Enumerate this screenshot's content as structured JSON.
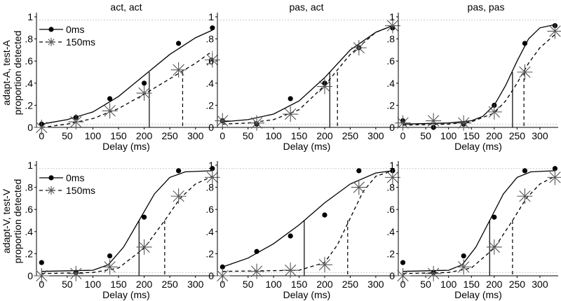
{
  "figure": {
    "row_labels": [
      [
        "adapt-A, test-A",
        "proportion detected"
      ],
      [
        "adapt-V, test-V",
        "proportion detected"
      ]
    ],
    "column_titles": [
      "act, act",
      "pas, act",
      "pas, pas"
    ]
  },
  "chart_data": [
    {
      "type": "line",
      "row": 0,
      "col": 0,
      "title": "act, act",
      "xlabel": "Delay (ms)",
      "ylabel": "",
      "xlim": [
        -10,
        340
      ],
      "ylim": [
        0,
        1
      ],
      "xticks": [
        "0",
        "50",
        "100",
        "150",
        "200",
        "250",
        "300"
      ],
      "yticks": [
        "0",
        ".2",
        ".4",
        ".6",
        ".8",
        "1"
      ],
      "legend": {
        "position": "top-left",
        "entries": [
          "0ms",
          "150ms"
        ]
      },
      "series": [
        {
          "name": "0ms",
          "style": "solid",
          "marker": "dot",
          "x": [
            0,
            67,
            133,
            200,
            267,
            333
          ],
          "y": [
            0.03,
            0.09,
            0.26,
            0.4,
            0.76,
            0.9
          ],
          "fit_threshold_x": 210,
          "fit_threshold_y": 0.5,
          "fit_x": [
            0,
            50,
            100,
            150,
            200,
            250,
            300,
            333
          ],
          "fit_y": [
            0.03,
            0.07,
            0.14,
            0.28,
            0.47,
            0.66,
            0.81,
            0.88
          ]
        },
        {
          "name": "150ms",
          "style": "dashed",
          "marker": "asterisk",
          "x": [
            0,
            67,
            133,
            200,
            267,
            333
          ],
          "y": [
            0.0,
            0.05,
            0.15,
            0.31,
            0.52,
            0.61
          ],
          "fit_threshold_x": 275,
          "fit_threshold_y": 0.5,
          "fit_x": [
            0,
            50,
            100,
            150,
            200,
            250,
            300,
            333
          ],
          "fit_y": [
            0.0,
            0.03,
            0.08,
            0.17,
            0.3,
            0.44,
            0.58,
            0.69
          ]
        }
      ]
    },
    {
      "type": "line",
      "row": 0,
      "col": 1,
      "title": "pas, act",
      "xlabel": "Delay (ms)",
      "ylabel": "",
      "xlim": [
        -10,
        340
      ],
      "ylim": [
        0,
        1
      ],
      "xticks": [
        "0",
        "50",
        "100",
        "150",
        "200",
        "250",
        "300"
      ],
      "yticks": [
        "0",
        ".2",
        ".4",
        ".6",
        ".8",
        "1"
      ],
      "series": [
        {
          "name": "0ms",
          "style": "solid",
          "marker": "dot",
          "x": [
            0,
            67,
            133,
            200,
            267,
            333
          ],
          "y": [
            0.06,
            0.03,
            0.26,
            0.4,
            0.72,
            0.9
          ],
          "fit_threshold_x": 210,
          "fit_threshold_y": 0.5,
          "fit_x": [
            0,
            50,
            100,
            150,
            200,
            250,
            300,
            333
          ],
          "fit_y": [
            0.05,
            0.07,
            0.12,
            0.24,
            0.45,
            0.7,
            0.86,
            0.92
          ]
        },
        {
          "name": "150ms",
          "style": "dashed",
          "marker": "asterisk",
          "x": [
            0,
            67,
            133,
            200,
            267,
            333
          ],
          "y": [
            0.06,
            0.04,
            0.12,
            0.37,
            0.72,
            0.92
          ],
          "fit_threshold_x": 225,
          "fit_threshold_y": 0.5,
          "fit_x": [
            0,
            50,
            100,
            150,
            200,
            250,
            300,
            333
          ],
          "fit_y": [
            0.03,
            0.04,
            0.07,
            0.16,
            0.38,
            0.66,
            0.86,
            0.92
          ]
        }
      ]
    },
    {
      "type": "line",
      "row": 0,
      "col": 2,
      "title": "pas, pas",
      "xlabel": "Delay (ms)",
      "ylabel": "",
      "xlim": [
        -10,
        340
      ],
      "ylim": [
        0,
        1
      ],
      "xticks": [
        "0",
        "50",
        "100",
        "150",
        "200",
        "250",
        "300"
      ],
      "yticks": [
        "0",
        ".2",
        ".4",
        ".6",
        ".8",
        "1"
      ],
      "series": [
        {
          "name": "0ms",
          "style": "solid",
          "marker": "dot",
          "x": [
            0,
            67,
            133,
            200,
            267,
            333
          ],
          "y": [
            0.06,
            0.0,
            0.03,
            0.2,
            0.76,
            0.92
          ],
          "fit_threshold_x": 240,
          "fit_threshold_y": 0.5,
          "fit_x": [
            0,
            100,
            150,
            175,
            200,
            225,
            250,
            275,
            300,
            333
          ],
          "fit_y": [
            0.03,
            0.04,
            0.06,
            0.1,
            0.2,
            0.38,
            0.6,
            0.8,
            0.9,
            0.93
          ]
        },
        {
          "name": "150ms",
          "style": "dashed",
          "marker": "asterisk",
          "x": [
            0,
            67,
            133,
            200,
            267,
            333
          ],
          "y": [
            0.04,
            0.06,
            0.04,
            0.14,
            0.5,
            0.87
          ],
          "fit_threshold_x": 265,
          "fit_threshold_y": 0.5,
          "fit_x": [
            0,
            100,
            150,
            200,
            225,
            250,
            275,
            300,
            333
          ],
          "fit_y": [
            0.02,
            0.03,
            0.05,
            0.13,
            0.24,
            0.4,
            0.58,
            0.72,
            0.84
          ]
        }
      ]
    },
    {
      "type": "line",
      "row": 1,
      "col": 0,
      "title": "",
      "xlabel": "Delay (ms)",
      "ylabel": "",
      "xlim": [
        -10,
        340
      ],
      "ylim": [
        0,
        1
      ],
      "xticks": [
        "0",
        "50",
        "100",
        "150",
        "200",
        "250",
        "300"
      ],
      "yticks": [
        "0",
        ".2",
        ".4",
        ".6",
        ".8",
        "1"
      ],
      "legend": {
        "position": "top-left",
        "entries": [
          "0ms",
          "150ms"
        ]
      },
      "series": [
        {
          "name": "0ms",
          "style": "solid",
          "marker": "dot",
          "x": [
            0,
            67,
            133,
            200,
            267,
            333
          ],
          "y": [
            0.12,
            0.03,
            0.18,
            0.53,
            0.95,
            0.97
          ],
          "fit_threshold_x": 190,
          "fit_threshold_y": 0.5,
          "fit_x": [
            0,
            100,
            130,
            160,
            190,
            220,
            250,
            280,
            333
          ],
          "fit_y": [
            0.04,
            0.05,
            0.1,
            0.26,
            0.5,
            0.74,
            0.89,
            0.94,
            0.95
          ]
        },
        {
          "name": "150ms",
          "style": "dashed",
          "marker": "asterisk",
          "x": [
            0,
            67,
            133,
            200,
            267,
            333
          ],
          "y": [
            0.0,
            0.02,
            0.08,
            0.26,
            0.72,
            0.89
          ],
          "fit_threshold_x": 240,
          "fit_threshold_y": 0.5,
          "fit_x": [
            0,
            100,
            150,
            200,
            240,
            270,
            300,
            333
          ],
          "fit_y": [
            0.02,
            0.03,
            0.07,
            0.25,
            0.5,
            0.7,
            0.83,
            0.9
          ]
        }
      ]
    },
    {
      "type": "line",
      "row": 1,
      "col": 1,
      "title": "",
      "xlabel": "Delay (ms)",
      "ylabel": "",
      "xlim": [
        -10,
        340
      ],
      "ylim": [
        0,
        1
      ],
      "xticks": [
        "0",
        "50",
        "100",
        "150",
        "200",
        "250",
        "300"
      ],
      "yticks": [
        "0",
        ".2",
        ".4",
        ".6",
        ".8",
        "1"
      ],
      "series": [
        {
          "name": "0ms",
          "style": "solid",
          "marker": "dot",
          "x": [
            0,
            67,
            133,
            200,
            267,
            333
          ],
          "y": [
            0.08,
            0.22,
            0.36,
            0.55,
            0.95,
            0.95
          ],
          "fit_threshold_x": 160,
          "fit_threshold_y": 0.5,
          "fit_x": [
            0,
            50,
            100,
            150,
            200,
            250,
            300,
            333
          ],
          "fit_y": [
            0.08,
            0.16,
            0.29,
            0.46,
            0.66,
            0.83,
            0.93,
            0.95
          ]
        },
        {
          "name": "150ms",
          "style": "dashed",
          "marker": "asterisk",
          "x": [
            0,
            67,
            133,
            200,
            267,
            333
          ],
          "y": [
            0.0,
            0.04,
            0.05,
            0.1,
            0.8,
            0.89
          ],
          "fit_threshold_x": 245,
          "fit_threshold_y": 0.5,
          "fit_x": [
            0,
            150,
            200,
            225,
            250,
            275,
            300,
            333
          ],
          "fit_y": [
            0.04,
            0.05,
            0.12,
            0.28,
            0.52,
            0.76,
            0.9,
            0.95
          ]
        }
      ]
    },
    {
      "type": "line",
      "row": 1,
      "col": 2,
      "title": "",
      "xlabel": "Delay (ms)",
      "ylabel": "",
      "xlim": [
        -10,
        340
      ],
      "ylim": [
        0,
        1
      ],
      "xticks": [
        "0",
        "50",
        "100",
        "150",
        "200",
        "250",
        "300"
      ],
      "yticks": [
        "0",
        ".2",
        ".4",
        ".6",
        ".8",
        "1"
      ],
      "series": [
        {
          "name": "0ms",
          "style": "solid",
          "marker": "dot",
          "x": [
            0,
            67,
            133,
            200,
            267,
            333
          ],
          "y": [
            0.12,
            0.03,
            0.18,
            0.53,
            0.95,
            0.97
          ],
          "fit_threshold_x": 190,
          "fit_threshold_y": 0.5,
          "fit_x": [
            0,
            100,
            130,
            160,
            190,
            220,
            250,
            280,
            333
          ],
          "fit_y": [
            0.04,
            0.05,
            0.1,
            0.26,
            0.5,
            0.74,
            0.89,
            0.94,
            0.95
          ]
        },
        {
          "name": "150ms",
          "style": "dashed",
          "marker": "asterisk",
          "x": [
            0,
            67,
            133,
            200,
            267,
            333
          ],
          "y": [
            0.0,
            0.02,
            0.08,
            0.26,
            0.72,
            0.89
          ],
          "fit_threshold_x": 240,
          "fit_threshold_y": 0.5,
          "fit_x": [
            0,
            100,
            150,
            200,
            240,
            270,
            300,
            333
          ],
          "fit_y": [
            0.02,
            0.03,
            0.07,
            0.25,
            0.5,
            0.7,
            0.83,
            0.9
          ]
        }
      ]
    }
  ]
}
